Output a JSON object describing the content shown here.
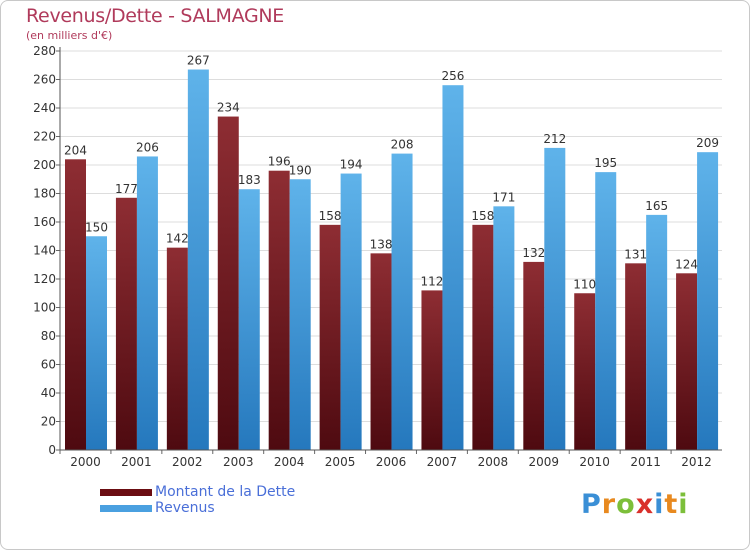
{
  "header": {
    "title": "Revenus/Dette - SALMAGNE",
    "subtitle": "(en milliers d'€)"
  },
  "colors": {
    "dette": "#8b2a2f",
    "dette_dark": "#5a0c12",
    "revenus": "#5aaee6",
    "revenus_dark": "#2a80c4",
    "grid": "#dddddd"
  },
  "legend": {
    "items": [
      {
        "label": "Montant de la Dette",
        "color": "#6b0d12"
      },
      {
        "label": "Revenus",
        "color": "#4aa0e0"
      }
    ]
  },
  "logo": {
    "letters": [
      {
        "ch": "P",
        "color": "#3a8fd6"
      },
      {
        "ch": "r",
        "color": "#e8891f"
      },
      {
        "ch": "o",
        "color": "#7cbf3a"
      },
      {
        "ch": "x",
        "color": "#d9302b"
      },
      {
        "ch": "i",
        "color": "#3a8fd6"
      },
      {
        "ch": "t",
        "color": "#e8891f"
      },
      {
        "ch": "i",
        "color": "#7cbf3a"
      }
    ]
  },
  "chart_data": {
    "type": "bar",
    "title": "Revenus/Dette - SALMAGNE",
    "subtitle": "(en milliers d'€)",
    "categories": [
      "2000",
      "2001",
      "2002",
      "2003",
      "2004",
      "2005",
      "2006",
      "2007",
      "2008",
      "2009",
      "2010",
      "2011",
      "2012"
    ],
    "series": [
      {
        "name": "Montant de la Dette",
        "values": [
          204,
          177,
          142,
          234,
          196,
          158,
          138,
          112,
          158,
          132,
          110,
          131,
          124
        ]
      },
      {
        "name": "Revenus",
        "values": [
          150,
          206,
          267,
          183,
          190,
          194,
          208,
          256,
          171,
          212,
          195,
          165,
          209
        ]
      }
    ],
    "ylim": [
      0,
      280
    ],
    "yticks": [
      0,
      20,
      40,
      60,
      80,
      100,
      120,
      140,
      160,
      180,
      200,
      220,
      240,
      260,
      280
    ],
    "grid": true,
    "legend_position": "bottom-left"
  }
}
